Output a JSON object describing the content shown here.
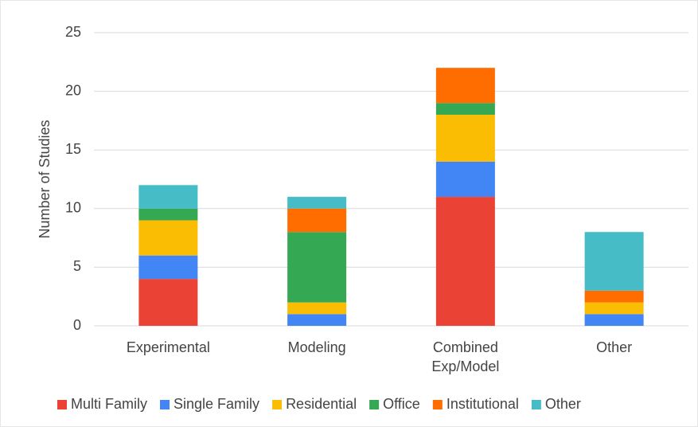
{
  "chart_data": {
    "type": "stacked_bar",
    "categories": [
      "Experimental",
      "Modeling",
      "Combined\nExp/Model",
      "Other"
    ],
    "y_label": "Number of Studies",
    "series": [
      {
        "name": "Multi Family",
        "color": "#ea4335",
        "values": [
          4,
          0,
          11,
          0
        ]
      },
      {
        "name": "Single Family",
        "color": "#4285f4",
        "values": [
          2,
          1,
          3,
          1
        ]
      },
      {
        "name": "Residential",
        "color": "#fbbc04",
        "values": [
          3,
          1,
          4,
          1
        ]
      },
      {
        "name": "Office",
        "color": "#34a853",
        "values": [
          1,
          6,
          1,
          0
        ]
      },
      {
        "name": "Institutional",
        "color": "#ff6d01",
        "values": [
          0,
          2,
          3,
          1
        ]
      },
      {
        "name": "Other",
        "color": "#46bdc6",
        "values": [
          2,
          1,
          0,
          5
        ]
      }
    ],
    "ylim": [
      0,
      25
    ],
    "yticks": [
      0,
      5,
      10,
      15,
      20,
      25
    ],
    "grid": true,
    "legend": "bottom"
  }
}
